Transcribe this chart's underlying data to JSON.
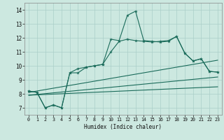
{
  "xlabel": "Humidex (Indice chaleur)",
  "bg_color": "#cce8e0",
  "grid_color": "#aacfc8",
  "line_color": "#1a6b5a",
  "xlim": [
    -0.5,
    23.5
  ],
  "ylim": [
    6.5,
    14.5
  ],
  "xticks": [
    0,
    1,
    2,
    3,
    4,
    5,
    6,
    7,
    8,
    9,
    10,
    11,
    12,
    13,
    14,
    15,
    16,
    17,
    18,
    19,
    20,
    21,
    22,
    23
  ],
  "yticks": [
    7,
    8,
    9,
    10,
    11,
    12,
    13,
    14
  ],
  "series1_x": [
    0,
    1,
    2,
    3,
    4,
    5,
    6,
    7,
    8,
    9,
    10,
    11,
    12,
    13,
    14,
    15,
    16,
    17,
    18,
    19,
    20,
    21,
    22,
    23
  ],
  "series1_y": [
    8.2,
    8.1,
    7.0,
    7.2,
    7.0,
    9.5,
    9.8,
    9.9,
    10.0,
    10.1,
    11.9,
    11.8,
    13.6,
    13.9,
    11.8,
    11.75,
    11.7,
    11.75,
    12.1,
    10.9,
    10.35,
    10.5,
    9.6,
    9.55
  ],
  "series2_x": [
    0,
    1,
    2,
    3,
    4,
    5,
    6,
    7,
    8,
    9,
    10,
    11,
    12,
    13,
    14,
    15,
    16,
    17,
    18,
    19,
    20,
    21,
    22,
    23
  ],
  "series2_y": [
    8.2,
    8.1,
    7.0,
    7.2,
    7.0,
    9.5,
    9.5,
    9.9,
    10.0,
    10.1,
    11.0,
    11.75,
    11.9,
    11.8,
    11.75,
    11.7,
    11.75,
    11.8,
    12.1,
    10.9,
    10.35,
    10.5,
    9.6,
    9.55
  ],
  "line1_x": [
    0,
    23
  ],
  "line1_y": [
    8.1,
    10.4
  ],
  "line2_x": [
    0,
    23
  ],
  "line2_y": [
    7.9,
    8.5
  ],
  "line3_x": [
    0,
    23
  ],
  "line3_y": [
    7.9,
    9.2
  ]
}
